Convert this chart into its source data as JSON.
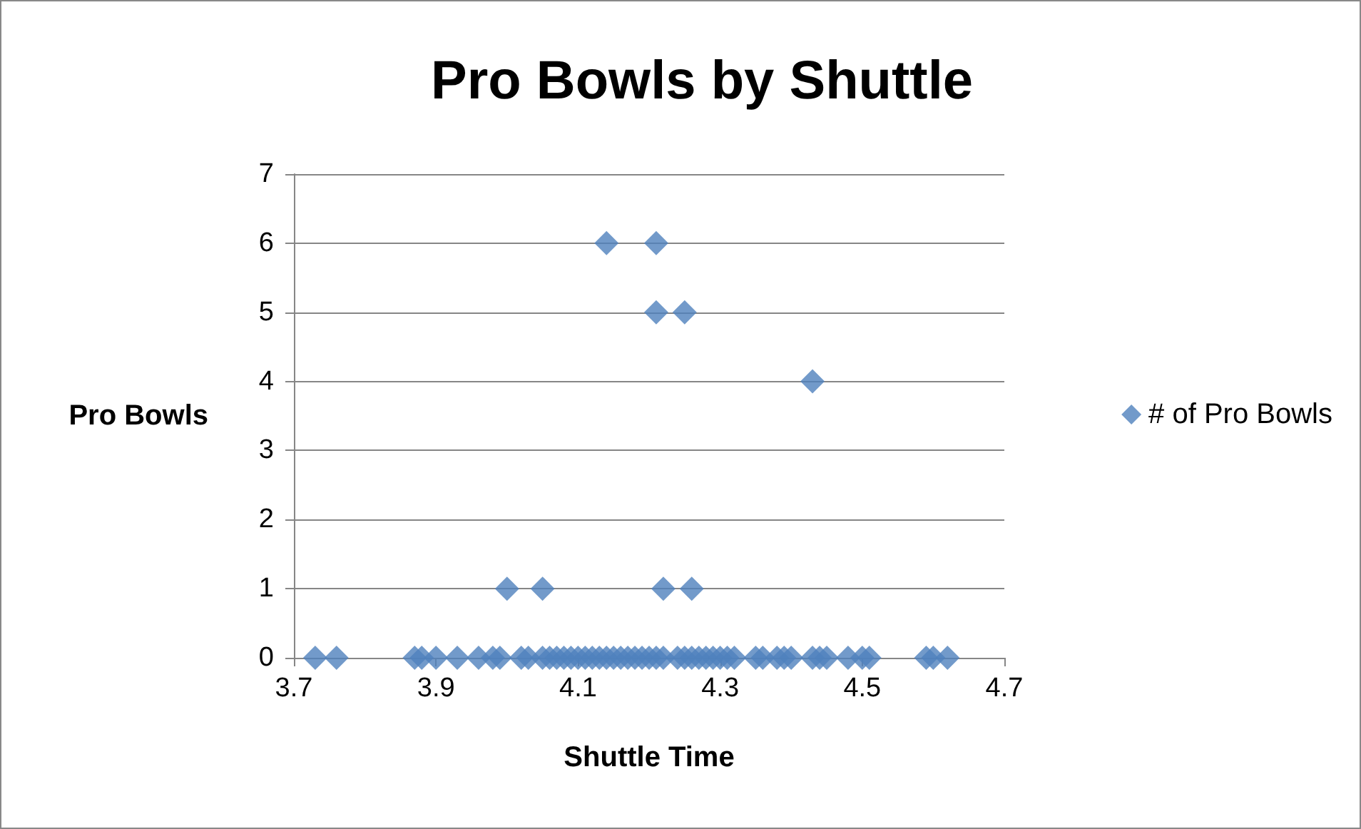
{
  "chart_data": {
    "type": "scatter",
    "title": "Pro Bowls by Shuttle",
    "xlabel": "Shuttle Time",
    "ylabel": "Pro Bowls",
    "series": [
      {
        "name": "# of Pro Bowls",
        "color": "#4f81bd",
        "x": [
          4.14,
          4.21,
          4.21,
          4.25,
          4.43,
          4.0,
          4.05,
          4.22,
          4.26,
          3.73,
          3.76,
          3.87,
          3.88,
          3.9,
          3.93,
          3.96,
          3.98,
          3.99,
          4.02,
          4.03,
          4.05,
          4.06,
          4.07,
          4.08,
          4.09,
          4.1,
          4.11,
          4.12,
          4.13,
          4.14,
          4.15,
          4.16,
          4.17,
          4.18,
          4.19,
          4.2,
          4.21,
          4.22,
          4.24,
          4.25,
          4.26,
          4.27,
          4.28,
          4.29,
          4.3,
          4.31,
          4.32,
          4.35,
          4.36,
          4.38,
          4.39,
          4.4,
          4.43,
          4.44,
          4.45,
          4.48,
          4.5,
          4.51,
          4.59,
          4.6,
          4.62
        ],
        "values": [
          6,
          6,
          5,
          5,
          4,
          1,
          1,
          1,
          1,
          0,
          0,
          0,
          0,
          0,
          0,
          0,
          0,
          0,
          0,
          0,
          0,
          0,
          0,
          0,
          0,
          0,
          0,
          0,
          0,
          0,
          0,
          0,
          0,
          0,
          0,
          0,
          0,
          0,
          0,
          0,
          0,
          0,
          0,
          0,
          0,
          0,
          0,
          0,
          0,
          0,
          0,
          0,
          0,
          0,
          0,
          0,
          0,
          0,
          0,
          0,
          0
        ]
      }
    ],
    "xlim": [
      3.7,
      4.7
    ],
    "xticks": [
      3.7,
      3.9,
      4.1,
      4.3,
      4.5,
      4.7
    ],
    "ylim": [
      0,
      7
    ],
    "yticks": [
      0,
      1,
      2,
      3,
      4,
      5,
      6,
      7
    ],
    "grid": "y",
    "legend": "right",
    "marker": "diamond"
  }
}
